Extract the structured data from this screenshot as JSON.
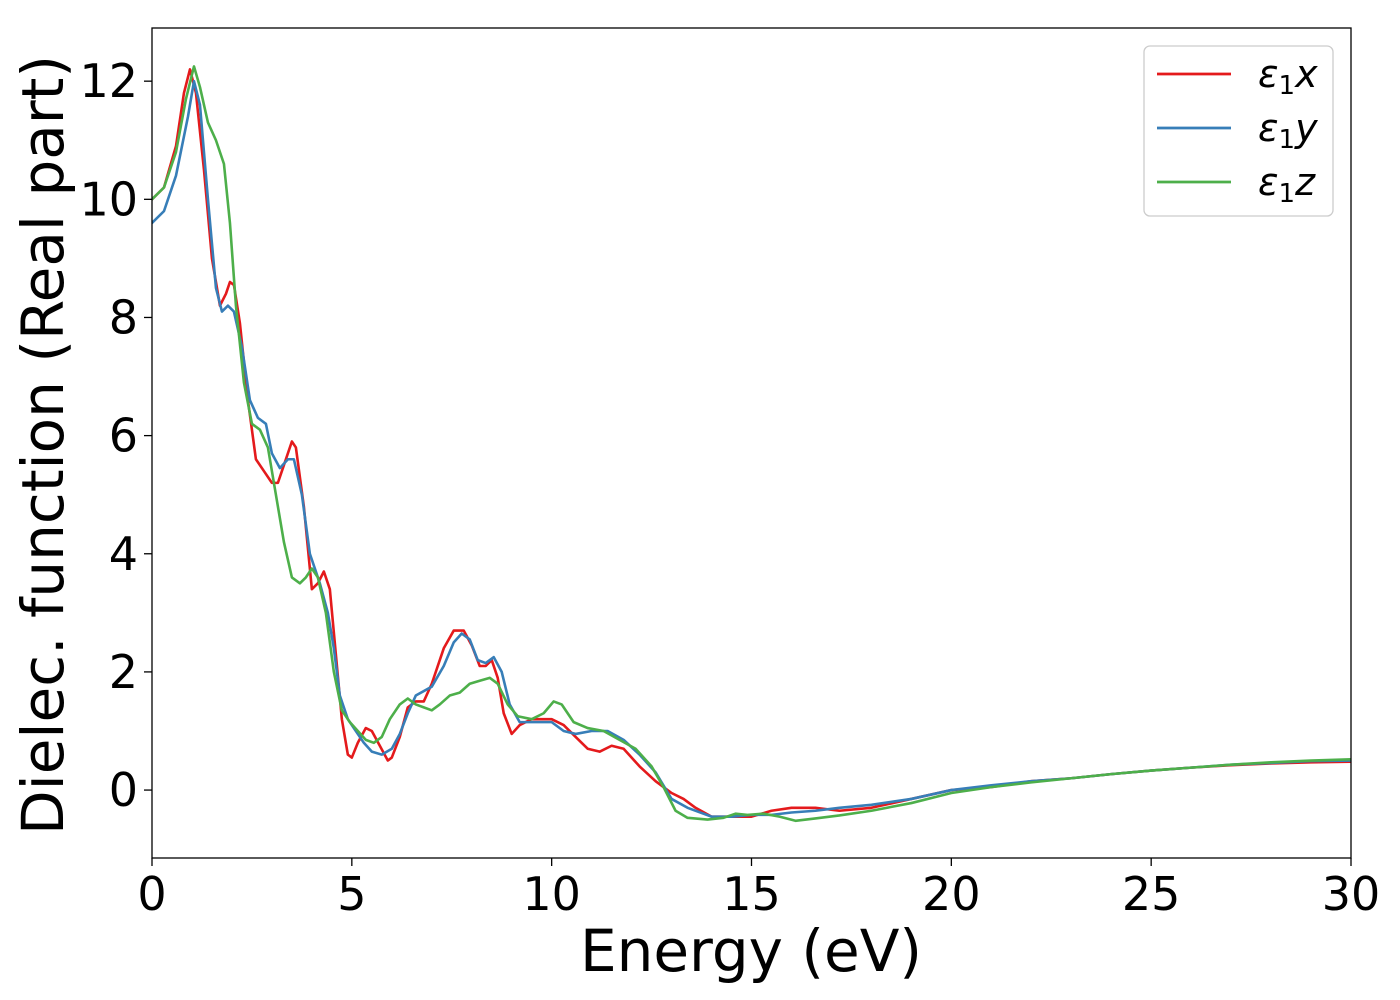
{
  "chart_data": {
    "type": "line",
    "title": "",
    "xlabel": "Energy (eV)",
    "ylabel": "Dielec. function (Real part)",
    "xlim": [
      0,
      30
    ],
    "ylim": [
      -1.15,
      12.9
    ],
    "xticks": [
      0,
      5,
      10,
      15,
      20,
      25,
      30
    ],
    "yticks": [
      0,
      2,
      4,
      6,
      8,
      10,
      12
    ],
    "grid": false,
    "legend_position": "top-right",
    "series": [
      {
        "name": "ε₁x",
        "legend_base": "ε",
        "legend_sub": "1",
        "legend_var": "x",
        "color": "#e41a1c",
        "points": [
          [
            0,
            10.0
          ],
          [
            0.3,
            10.2
          ],
          [
            0.6,
            10.9
          ],
          [
            0.8,
            11.8
          ],
          [
            0.95,
            12.2
          ],
          [
            1.1,
            11.8
          ],
          [
            1.3,
            10.5
          ],
          [
            1.5,
            9.0
          ],
          [
            1.7,
            8.2
          ],
          [
            1.85,
            8.4
          ],
          [
            1.95,
            8.6
          ],
          [
            2.05,
            8.55
          ],
          [
            2.2,
            7.9
          ],
          [
            2.4,
            6.6
          ],
          [
            2.6,
            5.6
          ],
          [
            2.8,
            5.4
          ],
          [
            3.0,
            5.2
          ],
          [
            3.15,
            5.2
          ],
          [
            3.3,
            5.5
          ],
          [
            3.5,
            5.9
          ],
          [
            3.6,
            5.8
          ],
          [
            3.8,
            4.8
          ],
          [
            4.0,
            3.4
          ],
          [
            4.15,
            3.5
          ],
          [
            4.3,
            3.7
          ],
          [
            4.45,
            3.4
          ],
          [
            4.6,
            2.3
          ],
          [
            4.75,
            1.2
          ],
          [
            4.9,
            0.6
          ],
          [
            5.0,
            0.55
          ],
          [
            5.15,
            0.8
          ],
          [
            5.35,
            1.05
          ],
          [
            5.5,
            1.0
          ],
          [
            5.7,
            0.75
          ],
          [
            5.9,
            0.5
          ],
          [
            6.0,
            0.55
          ],
          [
            6.2,
            0.9
          ],
          [
            6.4,
            1.4
          ],
          [
            6.6,
            1.5
          ],
          [
            6.8,
            1.5
          ],
          [
            7.0,
            1.8
          ],
          [
            7.3,
            2.4
          ],
          [
            7.55,
            2.7
          ],
          [
            7.8,
            2.7
          ],
          [
            8.0,
            2.45
          ],
          [
            8.2,
            2.1
          ],
          [
            8.35,
            2.1
          ],
          [
            8.5,
            2.2
          ],
          [
            8.65,
            1.9
          ],
          [
            8.8,
            1.3
          ],
          [
            9.0,
            0.95
          ],
          [
            9.2,
            1.1
          ],
          [
            9.5,
            1.2
          ],
          [
            10.0,
            1.2
          ],
          [
            10.3,
            1.1
          ],
          [
            10.6,
            0.9
          ],
          [
            10.9,
            0.7
          ],
          [
            11.2,
            0.65
          ],
          [
            11.5,
            0.75
          ],
          [
            11.8,
            0.7
          ],
          [
            12.2,
            0.4
          ],
          [
            12.6,
            0.15
          ],
          [
            13.0,
            -0.05
          ],
          [
            13.3,
            -0.15
          ],
          [
            13.6,
            -0.3
          ],
          [
            14.0,
            -0.45
          ],
          [
            14.5,
            -0.45
          ],
          [
            15.0,
            -0.45
          ],
          [
            15.5,
            -0.35
          ],
          [
            16.0,
            -0.3
          ],
          [
            16.6,
            -0.3
          ],
          [
            17.2,
            -0.35
          ],
          [
            18.0,
            -0.3
          ],
          [
            19.0,
            -0.15
          ],
          [
            20.0,
            0.0
          ],
          [
            21.0,
            0.05
          ],
          [
            22.0,
            0.15
          ],
          [
            23.0,
            0.2
          ],
          [
            24.0,
            0.27
          ],
          [
            25.0,
            0.33
          ],
          [
            26.0,
            0.38
          ],
          [
            27.0,
            0.42
          ],
          [
            28.0,
            0.45
          ],
          [
            29.0,
            0.47
          ],
          [
            30.0,
            0.48
          ]
        ]
      },
      {
        "name": "ε₁y",
        "legend_base": "ε",
        "legend_sub": "1",
        "legend_var": "y",
        "color": "#377eb8",
        "points": [
          [
            0,
            9.6
          ],
          [
            0.3,
            9.8
          ],
          [
            0.6,
            10.4
          ],
          [
            0.9,
            11.4
          ],
          [
            1.05,
            12.0
          ],
          [
            1.2,
            11.6
          ],
          [
            1.4,
            10.0
          ],
          [
            1.6,
            8.5
          ],
          [
            1.75,
            8.1
          ],
          [
            1.9,
            8.2
          ],
          [
            2.05,
            8.1
          ],
          [
            2.25,
            7.5
          ],
          [
            2.45,
            6.6
          ],
          [
            2.65,
            6.3
          ],
          [
            2.85,
            6.2
          ],
          [
            3.0,
            5.7
          ],
          [
            3.2,
            5.45
          ],
          [
            3.4,
            5.6
          ],
          [
            3.55,
            5.6
          ],
          [
            3.75,
            5.0
          ],
          [
            3.95,
            4.0
          ],
          [
            4.2,
            3.5
          ],
          [
            4.4,
            3.0
          ],
          [
            4.55,
            2.4
          ],
          [
            4.7,
            1.6
          ],
          [
            4.9,
            1.2
          ],
          [
            5.1,
            1.0
          ],
          [
            5.3,
            0.8
          ],
          [
            5.5,
            0.65
          ],
          [
            5.75,
            0.6
          ],
          [
            6.0,
            0.7
          ],
          [
            6.2,
            0.95
          ],
          [
            6.4,
            1.3
          ],
          [
            6.6,
            1.6
          ],
          [
            7.0,
            1.75
          ],
          [
            7.3,
            2.1
          ],
          [
            7.55,
            2.5
          ],
          [
            7.75,
            2.65
          ],
          [
            7.95,
            2.55
          ],
          [
            8.15,
            2.2
          ],
          [
            8.35,
            2.15
          ],
          [
            8.55,
            2.25
          ],
          [
            8.75,
            2.0
          ],
          [
            8.95,
            1.45
          ],
          [
            9.2,
            1.15
          ],
          [
            9.6,
            1.15
          ],
          [
            10.0,
            1.15
          ],
          [
            10.3,
            1.0
          ],
          [
            10.6,
            0.95
          ],
          [
            11.0,
            1.0
          ],
          [
            11.4,
            1.0
          ],
          [
            11.8,
            0.85
          ],
          [
            12.2,
            0.6
          ],
          [
            12.6,
            0.3
          ],
          [
            13.0,
            -0.15
          ],
          [
            13.4,
            -0.3
          ],
          [
            14.0,
            -0.45
          ],
          [
            14.5,
            -0.45
          ],
          [
            15.0,
            -0.42
          ],
          [
            15.5,
            -0.42
          ],
          [
            16.0,
            -0.38
          ],
          [
            16.6,
            -0.35
          ],
          [
            17.2,
            -0.3
          ],
          [
            18.0,
            -0.25
          ],
          [
            19.0,
            -0.15
          ],
          [
            20.0,
            0.0
          ],
          [
            21.0,
            0.08
          ],
          [
            22.0,
            0.15
          ],
          [
            23.0,
            0.2
          ],
          [
            24.0,
            0.27
          ],
          [
            25.0,
            0.33
          ],
          [
            26.0,
            0.38
          ],
          [
            27.0,
            0.43
          ],
          [
            28.0,
            0.46
          ],
          [
            29.0,
            0.49
          ],
          [
            30.0,
            0.5
          ]
        ]
      },
      {
        "name": "ε₁z",
        "legend_base": "ε",
        "legend_sub": "1",
        "legend_var": "z",
        "color": "#4daf4a",
        "points": [
          [
            0,
            10.0
          ],
          [
            0.3,
            10.2
          ],
          [
            0.6,
            10.8
          ],
          [
            0.85,
            11.7
          ],
          [
            1.05,
            12.25
          ],
          [
            1.2,
            11.9
          ],
          [
            1.4,
            11.3
          ],
          [
            1.6,
            11.0
          ],
          [
            1.8,
            10.6
          ],
          [
            1.95,
            9.6
          ],
          [
            2.1,
            8.2
          ],
          [
            2.3,
            6.9
          ],
          [
            2.5,
            6.2
          ],
          [
            2.7,
            6.1
          ],
          [
            2.9,
            5.8
          ],
          [
            3.1,
            5.0
          ],
          [
            3.3,
            4.2
          ],
          [
            3.5,
            3.6
          ],
          [
            3.7,
            3.5
          ],
          [
            3.85,
            3.6
          ],
          [
            4.0,
            3.75
          ],
          [
            4.15,
            3.6
          ],
          [
            4.35,
            3.0
          ],
          [
            4.55,
            2.0
          ],
          [
            4.75,
            1.35
          ],
          [
            4.95,
            1.15
          ],
          [
            5.15,
            1.0
          ],
          [
            5.35,
            0.85
          ],
          [
            5.55,
            0.8
          ],
          [
            5.75,
            0.9
          ],
          [
            5.95,
            1.2
          ],
          [
            6.2,
            1.45
          ],
          [
            6.4,
            1.55
          ],
          [
            6.6,
            1.45
          ],
          [
            6.8,
            1.4
          ],
          [
            7.0,
            1.35
          ],
          [
            7.2,
            1.45
          ],
          [
            7.45,
            1.6
          ],
          [
            7.7,
            1.65
          ],
          [
            7.95,
            1.8
          ],
          [
            8.2,
            1.85
          ],
          [
            8.45,
            1.9
          ],
          [
            8.65,
            1.8
          ],
          [
            8.9,
            1.45
          ],
          [
            9.15,
            1.25
          ],
          [
            9.5,
            1.2
          ],
          [
            9.8,
            1.3
          ],
          [
            10.05,
            1.5
          ],
          [
            10.25,
            1.45
          ],
          [
            10.55,
            1.15
          ],
          [
            10.9,
            1.05
          ],
          [
            11.3,
            1.0
          ],
          [
            11.7,
            0.85
          ],
          [
            12.1,
            0.7
          ],
          [
            12.5,
            0.4
          ],
          [
            12.8,
            0.05
          ],
          [
            13.1,
            -0.35
          ],
          [
            13.4,
            -0.47
          ],
          [
            13.9,
            -0.5
          ],
          [
            14.3,
            -0.47
          ],
          [
            14.6,
            -0.4
          ],
          [
            14.9,
            -0.42
          ],
          [
            15.3,
            -0.4
          ],
          [
            15.7,
            -0.45
          ],
          [
            16.1,
            -0.52
          ],
          [
            16.6,
            -0.48
          ],
          [
            17.2,
            -0.43
          ],
          [
            18.0,
            -0.35
          ],
          [
            19.0,
            -0.22
          ],
          [
            20.0,
            -0.05
          ],
          [
            21.0,
            0.05
          ],
          [
            22.0,
            0.13
          ],
          [
            23.0,
            0.2
          ],
          [
            24.0,
            0.27
          ],
          [
            25.0,
            0.33
          ],
          [
            26.0,
            0.38
          ],
          [
            27.0,
            0.43
          ],
          [
            28.0,
            0.47
          ],
          [
            29.0,
            0.5
          ],
          [
            30.0,
            0.52
          ]
        ]
      }
    ]
  }
}
